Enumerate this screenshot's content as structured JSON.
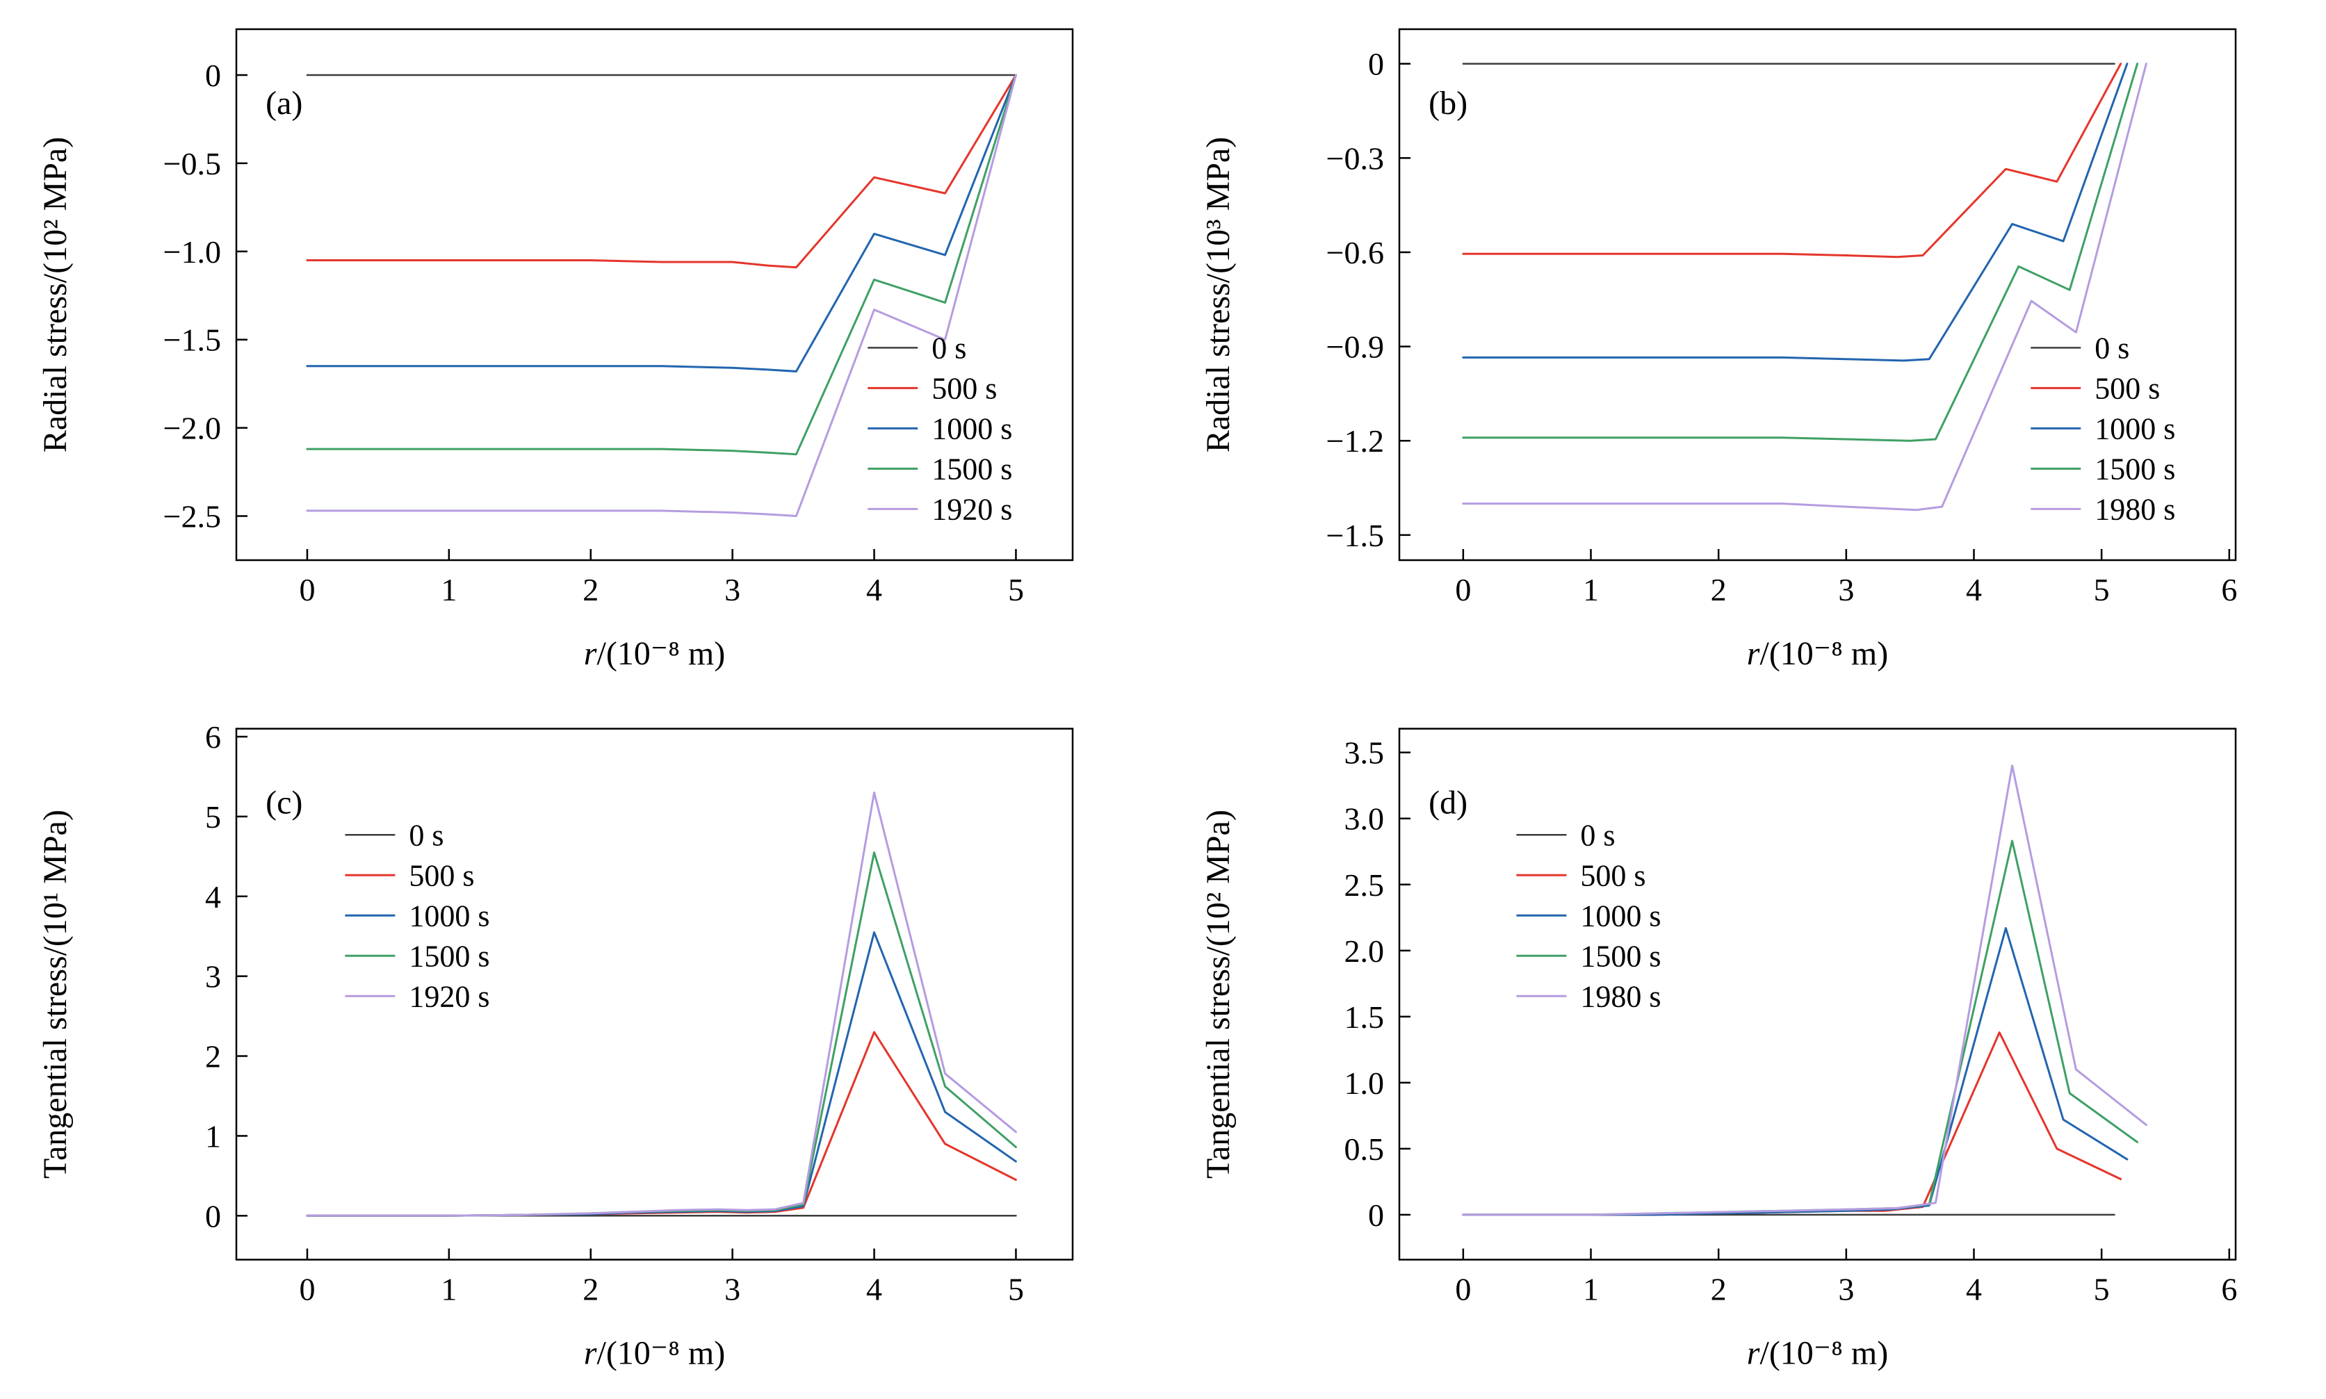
{
  "figure": {
    "description": "Four-panel line chart figure: radial and tangential stress versus radius for different times",
    "background": "#ffffff"
  },
  "palette": {
    "black": "#3d3d3d",
    "red": "#e5352b",
    "blue": "#2265af",
    "green": "#3fa065",
    "purple": "#b59ce0"
  },
  "chart_data": [
    {
      "id": "a",
      "type": "line",
      "panel_label": "(a)",
      "ylabel": "Radial stress/(10² MPa)",
      "xlabel": {
        "var": "r",
        "rest": "/(10⁻⁸ m)"
      },
      "xlim": [
        -0.5,
        5.4
      ],
      "ylim": [
        -2.75,
        0.26
      ],
      "xticks": {
        "values": [
          0,
          1,
          2,
          3,
          4,
          5
        ],
        "labels": [
          "0",
          "1",
          "2",
          "3",
          "4",
          "5"
        ]
      },
      "yticks": {
        "values": [
          0,
          -0.5,
          -1.0,
          -1.5,
          -2.0,
          -2.5
        ],
        "labels": [
          "0",
          "−0.5",
          "−1.0",
          "−1.5",
          "−2.0",
          "−2.5"
        ]
      },
      "grid": false,
      "legend": {
        "fx": 0.755,
        "fy": 0.6
      },
      "series": [
        {
          "name": "0 s",
          "color": "#3d3d3d",
          "width": 2.5,
          "x": [
            0,
            5
          ],
          "y": [
            0,
            0
          ]
        },
        {
          "name": "500 s",
          "color": "#e5352b",
          "width": 3,
          "x": [
            0,
            0.5,
            1,
            1.5,
            2,
            2.5,
            3,
            3.25,
            3.45,
            4,
            4.5,
            5
          ],
          "y": [
            -1.05,
            -1.05,
            -1.05,
            -1.05,
            -1.05,
            -1.06,
            -1.06,
            -1.08,
            -1.09,
            -0.58,
            -0.67,
            0
          ]
        },
        {
          "name": "1000 s",
          "color": "#2265af",
          "width": 3,
          "x": [
            0,
            0.5,
            1,
            1.5,
            2,
            2.5,
            3,
            3.25,
            3.45,
            4,
            4.5,
            5
          ],
          "y": [
            -1.65,
            -1.65,
            -1.65,
            -1.65,
            -1.65,
            -1.65,
            -1.66,
            -1.67,
            -1.68,
            -0.9,
            -1.02,
            0
          ]
        },
        {
          "name": "1500 s",
          "color": "#3fa065",
          "width": 3,
          "x": [
            0,
            0.5,
            1,
            1.5,
            2,
            2.5,
            3,
            3.25,
            3.45,
            4,
            4.5,
            5
          ],
          "y": [
            -2.12,
            -2.12,
            -2.12,
            -2.12,
            -2.12,
            -2.12,
            -2.13,
            -2.14,
            -2.15,
            -1.16,
            -1.29,
            0
          ]
        },
        {
          "name": "1920 s",
          "color": "#b59ce0",
          "width": 3,
          "x": [
            0,
            0.5,
            1,
            1.5,
            2,
            2.5,
            3,
            3.25,
            3.45,
            4,
            4.5,
            5
          ],
          "y": [
            -2.47,
            -2.47,
            -2.47,
            -2.47,
            -2.47,
            -2.47,
            -2.48,
            -2.49,
            -2.5,
            -1.33,
            -1.5,
            0
          ]
        }
      ]
    },
    {
      "id": "b",
      "type": "line",
      "panel_label": "(b)",
      "ylabel": "Radial stress/(10³ MPa)",
      "xlabel": {
        "var": "r",
        "rest": "/(10⁻⁸ m)"
      },
      "xlim": [
        -0.5,
        6.05
      ],
      "ylim": [
        -1.58,
        0.11
      ],
      "xticks": {
        "values": [
          0,
          1,
          2,
          3,
          4,
          5,
          6
        ],
        "labels": [
          "0",
          "1",
          "2",
          "3",
          "4",
          "5",
          "6"
        ]
      },
      "yticks": {
        "values": [
          0,
          -0.3,
          -0.6,
          -0.9,
          -1.2,
          -1.5
        ],
        "labels": [
          "0",
          "−0.3",
          "−0.6",
          "−0.9",
          "−1.2",
          "−1.5"
        ]
      },
      "grid": false,
      "legend": {
        "fx": 0.755,
        "fy": 0.6
      },
      "series": [
        {
          "name": "0 s",
          "color": "#3d3d3d",
          "width": 2.5,
          "x": [
            0,
            5.1
          ],
          "y": [
            0,
            0
          ]
        },
        {
          "name": "500 s",
          "color": "#e5352b",
          "width": 3,
          "x": [
            0,
            0.5,
            1,
            1.5,
            2,
            2.5,
            3,
            3.4,
            3.6,
            4.25,
            4.65,
            5.15
          ],
          "y": [
            -0.605,
            -0.605,
            -0.605,
            -0.605,
            -0.605,
            -0.605,
            -0.61,
            -0.615,
            -0.61,
            -0.335,
            -0.375,
            0
          ]
        },
        {
          "name": "1000 s",
          "color": "#2265af",
          "width": 3,
          "x": [
            0,
            0.5,
            1,
            1.5,
            2,
            2.5,
            3,
            3.45,
            3.65,
            4.3,
            4.7,
            5.2
          ],
          "y": [
            -0.935,
            -0.935,
            -0.935,
            -0.935,
            -0.935,
            -0.935,
            -0.94,
            -0.945,
            -0.94,
            -0.51,
            -0.565,
            0
          ]
        },
        {
          "name": "1500 s",
          "color": "#3fa065",
          "width": 3,
          "x": [
            0,
            0.5,
            1,
            1.5,
            2,
            2.5,
            3,
            3.5,
            3.7,
            4.35,
            4.75,
            5.28
          ],
          "y": [
            -1.19,
            -1.19,
            -1.19,
            -1.19,
            -1.19,
            -1.19,
            -1.195,
            -1.2,
            -1.195,
            -0.645,
            -0.72,
            0
          ]
        },
        {
          "name": "1980 s",
          "color": "#b59ce0",
          "width": 3,
          "x": [
            0,
            0.5,
            1,
            1.5,
            2,
            2.5,
            3,
            3.55,
            3.75,
            4.45,
            4.8,
            5.35
          ],
          "y": [
            -1.4,
            -1.4,
            -1.4,
            -1.4,
            -1.4,
            -1.4,
            -1.41,
            -1.42,
            -1.41,
            -0.755,
            -0.855,
            0
          ]
        }
      ]
    },
    {
      "id": "c",
      "type": "line",
      "panel_label": "(c)",
      "ylabel": "Tangential stress/(10¹ MPa)",
      "xlabel": {
        "var": "r",
        "rest": "/(10⁻⁸ m)"
      },
      "xlim": [
        -0.5,
        5.4
      ],
      "ylim": [
        -0.55,
        6.1
      ],
      "xticks": {
        "values": [
          0,
          1,
          2,
          3,
          4,
          5
        ],
        "labels": [
          "0",
          "1",
          "2",
          "3",
          "4",
          "5"
        ]
      },
      "yticks": {
        "values": [
          0,
          1,
          2,
          3,
          4,
          5,
          6
        ],
        "labels": [
          "0",
          "1",
          "2",
          "3",
          "4",
          "5",
          "6"
        ]
      },
      "grid": false,
      "legend": {
        "fx": 0.13,
        "fy": 0.2
      },
      "series": [
        {
          "name": "0 s",
          "color": "#3d3d3d",
          "width": 2.5,
          "x": [
            0,
            5
          ],
          "y": [
            0,
            0
          ]
        },
        {
          "name": "500 s",
          "color": "#e5352b",
          "width": 3,
          "x": [
            0,
            0.5,
            1,
            1.5,
            2,
            2.3,
            2.6,
            2.9,
            3.1,
            3.3,
            3.5,
            4,
            4.5,
            5
          ],
          "y": [
            0,
            0,
            0,
            0.01,
            0.02,
            0.03,
            0.04,
            0.05,
            0.04,
            0.05,
            0.1,
            2.3,
            0.9,
            0.45
          ]
        },
        {
          "name": "1000 s",
          "color": "#2265af",
          "width": 3,
          "x": [
            0,
            0.5,
            1,
            1.5,
            2,
            2.3,
            2.6,
            2.9,
            3.1,
            3.3,
            3.5,
            4,
            4.5,
            5
          ],
          "y": [
            0,
            0,
            0,
            0.01,
            0.02,
            0.04,
            0.05,
            0.06,
            0.05,
            0.06,
            0.12,
            3.55,
            1.3,
            0.68
          ]
        },
        {
          "name": "1500 s",
          "color": "#3fa065",
          "width": 3,
          "x": [
            0,
            0.5,
            1,
            1.5,
            2,
            2.3,
            2.6,
            2.9,
            3.1,
            3.3,
            3.5,
            4,
            4.5,
            5
          ],
          "y": [
            0,
            0,
            0,
            0.01,
            0.03,
            0.05,
            0.06,
            0.07,
            0.06,
            0.07,
            0.14,
            4.55,
            1.62,
            0.86
          ]
        },
        {
          "name": "1920 s",
          "color": "#b59ce0",
          "width": 3,
          "x": [
            0,
            0.5,
            1,
            1.5,
            2,
            2.3,
            2.6,
            2.9,
            3.1,
            3.3,
            3.5,
            4,
            4.5,
            5
          ],
          "y": [
            0,
            0,
            0,
            0.01,
            0.03,
            0.05,
            0.07,
            0.08,
            0.07,
            0.08,
            0.16,
            5.3,
            1.78,
            1.05
          ]
        }
      ]
    },
    {
      "id": "d",
      "type": "line",
      "panel_label": "(d)",
      "ylabel": "Tangential stress/(10² MPa)",
      "xlabel": {
        "var": "r",
        "rest": "/(10⁻⁸ m)"
      },
      "xlim": [
        -0.5,
        6.05
      ],
      "ylim": [
        -0.34,
        3.68
      ],
      "xticks": {
        "values": [
          0,
          1,
          2,
          3,
          4,
          5,
          6
        ],
        "labels": [
          "0",
          "1",
          "2",
          "3",
          "4",
          "5",
          "6"
        ]
      },
      "yticks": {
        "values": [
          0,
          0.5,
          1.0,
          1.5,
          2.0,
          2.5,
          3.0,
          3.5
        ],
        "labels": [
          "0",
          "0.5",
          "1.0",
          "1.5",
          "2.0",
          "2.5",
          "3.0",
          "3.5"
        ]
      },
      "grid": false,
      "legend": {
        "fx": 0.14,
        "fy": 0.2
      },
      "series": [
        {
          "name": "0 s",
          "color": "#3d3d3d",
          "width": 2.5,
          "x": [
            0,
            5.1
          ],
          "y": [
            0,
            0
          ]
        },
        {
          "name": "500 s",
          "color": "#e5352b",
          "width": 3,
          "x": [
            0,
            0.5,
            1,
            1.5,
            2,
            2.5,
            3,
            3.3,
            3.6,
            4.2,
            4.65,
            5.15
          ],
          "y": [
            0,
            0,
            0,
            0,
            0.01,
            0.02,
            0.03,
            0.03,
            0.06,
            1.38,
            0.5,
            0.27
          ]
        },
        {
          "name": "1000 s",
          "color": "#2265af",
          "width": 3,
          "x": [
            0,
            0.5,
            1,
            1.5,
            2,
            2.5,
            3,
            3.35,
            3.65,
            4.25,
            4.7,
            5.2
          ],
          "y": [
            0,
            0,
            0,
            0,
            0.01,
            0.02,
            0.03,
            0.04,
            0.07,
            2.17,
            0.72,
            0.42
          ]
        },
        {
          "name": "1500 s",
          "color": "#3fa065",
          "width": 3,
          "x": [
            0,
            0.5,
            1,
            1.5,
            2,
            2.5,
            3,
            3.4,
            3.65,
            4.3,
            4.75,
            5.28
          ],
          "y": [
            0,
            0,
            0,
            0.01,
            0.02,
            0.03,
            0.04,
            0.05,
            0.08,
            2.83,
            0.92,
            0.55
          ]
        },
        {
          "name": "1980 s",
          "color": "#b59ce0",
          "width": 3,
          "x": [
            0,
            0.5,
            1,
            1.5,
            2,
            2.5,
            3,
            3.4,
            3.7,
            4.3,
            4.8,
            5.35
          ],
          "y": [
            0,
            0,
            0,
            0.01,
            0.02,
            0.03,
            0.04,
            0.05,
            0.09,
            3.4,
            1.1,
            0.68
          ]
        }
      ]
    }
  ]
}
